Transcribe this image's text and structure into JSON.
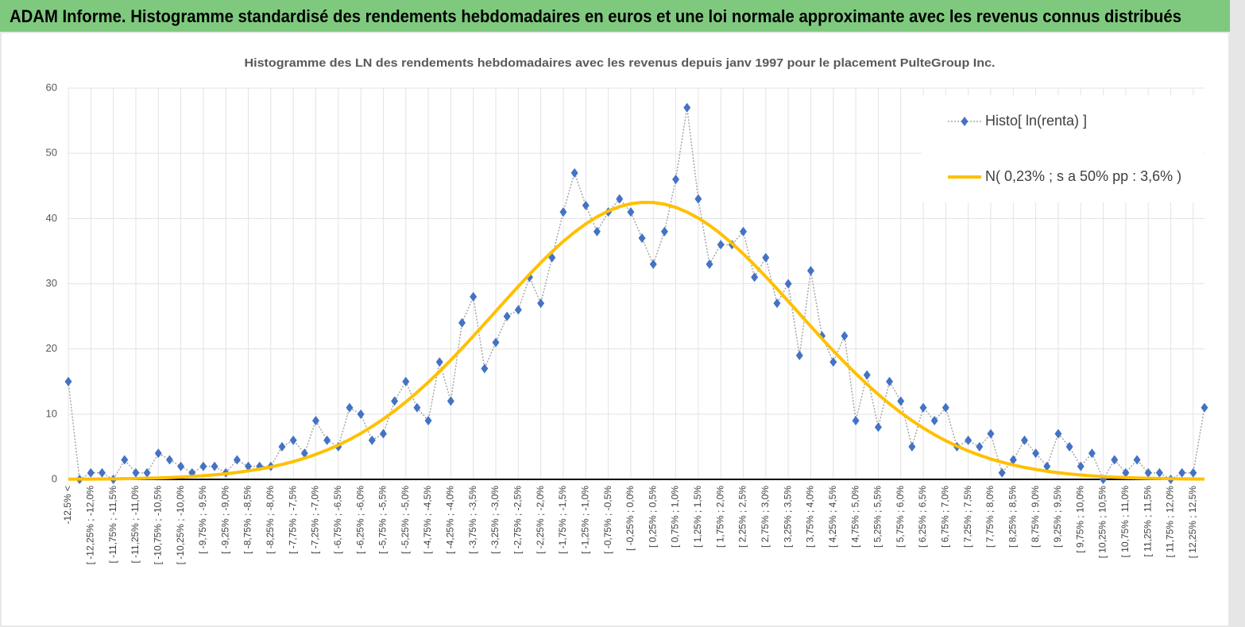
{
  "banner_title": "ADAM Informe. Histogramme standardisé des rendements hebdomadaires en euros et une loi normale approximante avec les revenus connus distribués",
  "chart_data": {
    "type": "line",
    "title": "Histogramme des LN des rendements hebdomadaires avec les revenus depuis janv 1997 pour le placement PulteGroup Inc.",
    "categories": [
      "-12,5% <",
      null,
      "[ -12,25% ; -12,0%",
      null,
      "[ -11,75% ; -11,5%",
      null,
      "[ -11,25% ; -11,0%",
      null,
      "[ -10,75% ; -10,5%",
      null,
      "[ -10,25% ; -10,0%",
      null,
      "[ -9,75% ; -9,5%",
      null,
      "[ -9,25% ; -9,0%",
      null,
      "[ -8,75% ; -8,5%",
      null,
      "[ -8,25% ; -8,0%",
      null,
      "[ -7,75% ; -7,5%",
      null,
      "[ -7,25% ; -7,0%",
      null,
      "[ -6,75% ; -6,5%",
      null,
      "[ -6,25% ; -6,0%",
      null,
      "[ -5,75% ; -5,5%",
      null,
      "[ -5,25% ; -5,0%",
      null,
      "[ -4,75% ; -4,5%",
      null,
      "[ -4,25% ; -4,0%",
      null,
      "[ -3,75% ; -3,5%",
      null,
      "[ -3,25% ; -3,0%",
      null,
      "[ -2,75% ; -2,5%",
      null,
      "[ -2,25% ; -2,0%",
      null,
      "[ -1,75% ; -1,5%",
      null,
      "[ -1,25% ; -1,0%",
      null,
      "[ -0,75% ; -0,5%",
      null,
      "[ -0,25% ; 0,0%",
      null,
      "[ 0,25% ; 0,5%",
      null,
      "[ 0,75% ; 1,0%",
      null,
      "[ 1,25% ; 1,5%",
      null,
      "[ 1,75% ; 2,0%",
      null,
      "[ 2,25% ; 2,5%",
      null,
      "[ 2,75% ; 3,0%",
      null,
      "[ 3,25% ; 3,5%",
      null,
      "[ 3,75% ; 4,0%",
      null,
      "[ 4,25% ; 4,5%",
      null,
      "[ 4,75% ; 5,0%",
      null,
      "[ 5,25% ; 5,5%",
      null,
      "[ 5,75% ; 6,0%",
      null,
      "[ 6,25% ; 6,5%",
      null,
      "[ 6,75% ; 7,0%",
      null,
      "[ 7,25% ; 7,5%",
      null,
      "[ 7,75% ; 8,0%",
      null,
      "[ 8,25% ; 8,5%",
      null,
      "[ 8,75% ; 9,0%",
      null,
      "[ 9,25% ; 9,5%",
      null,
      "[ 9,75% ; 10,0%",
      null,
      "[ 10,25% ; 10,5%",
      null,
      "[ 10,75% ; 11,0%",
      null,
      "[ 11,25% ; 11,5%",
      null,
      "[ 11,75% ; 12,0%",
      null,
      "[ 12,25% ; 12,5%",
      null
    ],
    "series": [
      {
        "name": "Histo[ ln(renta) ]",
        "color": "#4472c4",
        "marker": "diamond",
        "line_color": "#a6a6a6",
        "values": [
          15,
          0,
          1,
          1,
          0,
          3,
          1,
          1,
          4,
          3,
          2,
          1,
          2,
          2,
          1,
          3,
          2,
          2,
          2,
          5,
          6,
          4,
          9,
          6,
          5,
          11,
          10,
          6,
          7,
          12,
          15,
          11,
          9,
          18,
          12,
          24,
          28,
          17,
          21,
          25,
          26,
          31,
          27,
          34,
          41,
          47,
          42,
          38,
          41,
          43,
          41,
          37,
          33,
          38,
          46,
          57,
          43,
          33,
          36,
          36,
          38,
          31,
          34,
          27,
          30,
          19,
          32,
          22,
          18,
          22,
          9,
          16,
          8,
          15,
          12,
          5,
          11,
          9,
          11,
          5,
          6,
          5,
          7,
          1,
          3,
          6,
          4,
          2,
          7,
          5,
          2,
          4,
          0,
          3,
          1,
          3,
          1,
          1,
          0,
          1,
          1,
          11
        ]
      },
      {
        "name": "N( 0,23% ; s a 50% pp : 3,6% )",
        "color": "#ffc000",
        "values": [
          0.03,
          0.04,
          0.05,
          0.06,
          0.08,
          0.11,
          0.14,
          0.18,
          0.22,
          0.28,
          0.36,
          0.45,
          0.56,
          0.7,
          0.86,
          1.06,
          1.3,
          1.58,
          1.9,
          2.29,
          2.73,
          3.24,
          3.83,
          4.5,
          5.25,
          6.1,
          7.05,
          8.1,
          9.25,
          10.51,
          11.87,
          13.34,
          14.9,
          16.55,
          18.29,
          20.1,
          21.96,
          23.86,
          25.78,
          27.7,
          29.59,
          31.45,
          33.23,
          34.91,
          36.49,
          37.91,
          39.18,
          40.26,
          41.15,
          41.82,
          42.27,
          42.48,
          42.46,
          42.2,
          41.71,
          40.99,
          40.07,
          38.95,
          37.65,
          36.18,
          34.59,
          32.88,
          31.08,
          29.22,
          27.31,
          25.39,
          23.48,
          21.58,
          19.73,
          17.94,
          16.22,
          14.58,
          13.04,
          11.59,
          10.25,
          9.01,
          7.88,
          6.85,
          5.92,
          5.1,
          4.36,
          3.71,
          3.13,
          2.64,
          2.21,
          1.83,
          1.52,
          1.25,
          1.02,
          0.83,
          0.67,
          0.54,
          0.43,
          0.34,
          0.27,
          0.21,
          0.17,
          0.13,
          0.1,
          0.08,
          0.06,
          0.05
        ]
      }
    ],
    "ylim": [
      0,
      60
    ],
    "yticks": [
      0,
      10,
      20,
      30,
      40,
      50,
      60
    ],
    "grid": true,
    "legend": "upper right"
  }
}
